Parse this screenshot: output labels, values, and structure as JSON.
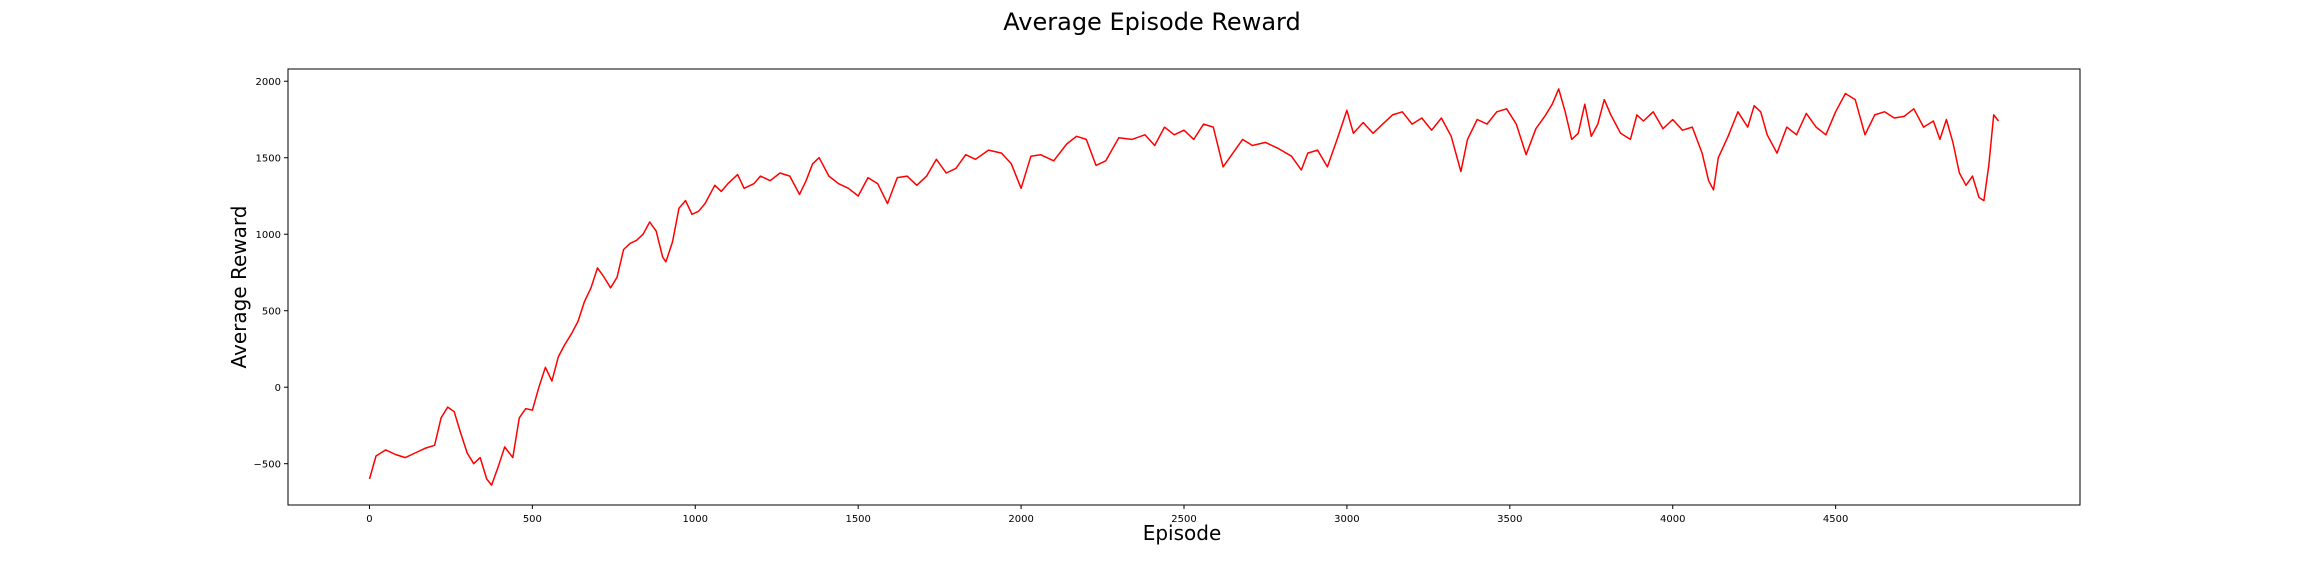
{
  "chart_data": {
    "type": "line",
    "title": "Average Episode Reward",
    "xlabel": "Episode",
    "ylabel": "Average Reward",
    "xlim": [
      -250,
      5250
    ],
    "ylim": [
      -770,
      2080
    ],
    "xticks": [
      0,
      500,
      1000,
      1500,
      2000,
      2500,
      3000,
      3500,
      4000,
      4500
    ],
    "yticks": [
      -500,
      0,
      500,
      1000,
      1500,
      2000
    ],
    "grid": false,
    "legend": "none",
    "series": [
      {
        "color": "#ff0000",
        "points": [
          [
            0,
            -600
          ],
          [
            20,
            -450
          ],
          [
            50,
            -410
          ],
          [
            80,
            -440
          ],
          [
            110,
            -460
          ],
          [
            140,
            -430
          ],
          [
            170,
            -400
          ],
          [
            200,
            -380
          ],
          [
            220,
            -200
          ],
          [
            240,
            -130
          ],
          [
            260,
            -160
          ],
          [
            280,
            -300
          ],
          [
            300,
            -430
          ],
          [
            320,
            -500
          ],
          [
            340,
            -460
          ],
          [
            360,
            -600
          ],
          [
            375,
            -640
          ],
          [
            395,
            -520
          ],
          [
            415,
            -390
          ],
          [
            440,
            -460
          ],
          [
            460,
            -200
          ],
          [
            480,
            -140
          ],
          [
            500,
            -150
          ],
          [
            520,
            0
          ],
          [
            540,
            130
          ],
          [
            560,
            40
          ],
          [
            580,
            200
          ],
          [
            600,
            280
          ],
          [
            620,
            350
          ],
          [
            640,
            430
          ],
          [
            660,
            560
          ],
          [
            680,
            650
          ],
          [
            700,
            780
          ],
          [
            720,
            720
          ],
          [
            740,
            650
          ],
          [
            760,
            720
          ],
          [
            780,
            900
          ],
          [
            800,
            940
          ],
          [
            820,
            960
          ],
          [
            840,
            1000
          ],
          [
            860,
            1080
          ],
          [
            880,
            1020
          ],
          [
            900,
            850
          ],
          [
            910,
            820
          ],
          [
            930,
            950
          ],
          [
            950,
            1170
          ],
          [
            970,
            1220
          ],
          [
            990,
            1130
          ],
          [
            1010,
            1150
          ],
          [
            1030,
            1200
          ],
          [
            1060,
            1320
          ],
          [
            1080,
            1280
          ],
          [
            1100,
            1330
          ],
          [
            1130,
            1390
          ],
          [
            1150,
            1300
          ],
          [
            1180,
            1330
          ],
          [
            1200,
            1380
          ],
          [
            1230,
            1350
          ],
          [
            1260,
            1400
          ],
          [
            1290,
            1380
          ],
          [
            1320,
            1260
          ],
          [
            1340,
            1350
          ],
          [
            1360,
            1460
          ],
          [
            1380,
            1500
          ],
          [
            1410,
            1380
          ],
          [
            1440,
            1330
          ],
          [
            1470,
            1300
          ],
          [
            1500,
            1250
          ],
          [
            1530,
            1370
          ],
          [
            1560,
            1330
          ],
          [
            1590,
            1200
          ],
          [
            1620,
            1370
          ],
          [
            1650,
            1380
          ],
          [
            1680,
            1320
          ],
          [
            1710,
            1380
          ],
          [
            1740,
            1490
          ],
          [
            1770,
            1400
          ],
          [
            1800,
            1430
          ],
          [
            1830,
            1520
          ],
          [
            1860,
            1490
          ],
          [
            1900,
            1550
          ],
          [
            1940,
            1530
          ],
          [
            1970,
            1460
          ],
          [
            2000,
            1300
          ],
          [
            2030,
            1510
          ],
          [
            2060,
            1520
          ],
          [
            2100,
            1480
          ],
          [
            2140,
            1590
          ],
          [
            2170,
            1640
          ],
          [
            2200,
            1620
          ],
          [
            2230,
            1450
          ],
          [
            2260,
            1480
          ],
          [
            2300,
            1630
          ],
          [
            2340,
            1620
          ],
          [
            2380,
            1650
          ],
          [
            2410,
            1580
          ],
          [
            2440,
            1700
          ],
          [
            2470,
            1650
          ],
          [
            2500,
            1680
          ],
          [
            2530,
            1620
          ],
          [
            2560,
            1720
          ],
          [
            2590,
            1700
          ],
          [
            2620,
            1440
          ],
          [
            2650,
            1530
          ],
          [
            2680,
            1620
          ],
          [
            2710,
            1580
          ],
          [
            2750,
            1600
          ],
          [
            2790,
            1560
          ],
          [
            2830,
            1510
          ],
          [
            2860,
            1420
          ],
          [
            2880,
            1530
          ],
          [
            2910,
            1550
          ],
          [
            2940,
            1440
          ],
          [
            2970,
            1620
          ],
          [
            3000,
            1810
          ],
          [
            3020,
            1660
          ],
          [
            3050,
            1730
          ],
          [
            3080,
            1660
          ],
          [
            3110,
            1720
          ],
          [
            3140,
            1780
          ],
          [
            3170,
            1800
          ],
          [
            3200,
            1720
          ],
          [
            3230,
            1760
          ],
          [
            3260,
            1680
          ],
          [
            3290,
            1760
          ],
          [
            3320,
            1640
          ],
          [
            3350,
            1410
          ],
          [
            3370,
            1620
          ],
          [
            3400,
            1750
          ],
          [
            3430,
            1720
          ],
          [
            3460,
            1800
          ],
          [
            3490,
            1820
          ],
          [
            3520,
            1720
          ],
          [
            3550,
            1520
          ],
          [
            3580,
            1690
          ],
          [
            3610,
            1780
          ],
          [
            3630,
            1850
          ],
          [
            3650,
            1950
          ],
          [
            3670,
            1800
          ],
          [
            3690,
            1620
          ],
          [
            3710,
            1660
          ],
          [
            3730,
            1850
          ],
          [
            3750,
            1640
          ],
          [
            3770,
            1720
          ],
          [
            3790,
            1880
          ],
          [
            3810,
            1780
          ],
          [
            3840,
            1660
          ],
          [
            3870,
            1620
          ],
          [
            3890,
            1780
          ],
          [
            3910,
            1740
          ],
          [
            3940,
            1800
          ],
          [
            3970,
            1690
          ],
          [
            4000,
            1750
          ],
          [
            4030,
            1680
          ],
          [
            4060,
            1700
          ],
          [
            4090,
            1530
          ],
          [
            4110,
            1350
          ],
          [
            4125,
            1290
          ],
          [
            4140,
            1500
          ],
          [
            4170,
            1640
          ],
          [
            4200,
            1800
          ],
          [
            4230,
            1700
          ],
          [
            4250,
            1840
          ],
          [
            4270,
            1800
          ],
          [
            4290,
            1650
          ],
          [
            4320,
            1530
          ],
          [
            4350,
            1700
          ],
          [
            4380,
            1650
          ],
          [
            4410,
            1790
          ],
          [
            4440,
            1700
          ],
          [
            4470,
            1650
          ],
          [
            4500,
            1800
          ],
          [
            4530,
            1920
          ],
          [
            4560,
            1880
          ],
          [
            4590,
            1650
          ],
          [
            4620,
            1780
          ],
          [
            4650,
            1800
          ],
          [
            4680,
            1760
          ],
          [
            4710,
            1770
          ],
          [
            4740,
            1820
          ],
          [
            4770,
            1700
          ],
          [
            4800,
            1740
          ],
          [
            4820,
            1620
          ],
          [
            4840,
            1750
          ],
          [
            4860,
            1600
          ],
          [
            4880,
            1400
          ],
          [
            4900,
            1320
          ],
          [
            4920,
            1380
          ],
          [
            4940,
            1240
          ],
          [
            4955,
            1220
          ],
          [
            4970,
            1450
          ],
          [
            4985,
            1780
          ],
          [
            5000,
            1740
          ]
        ]
      }
    ]
  }
}
